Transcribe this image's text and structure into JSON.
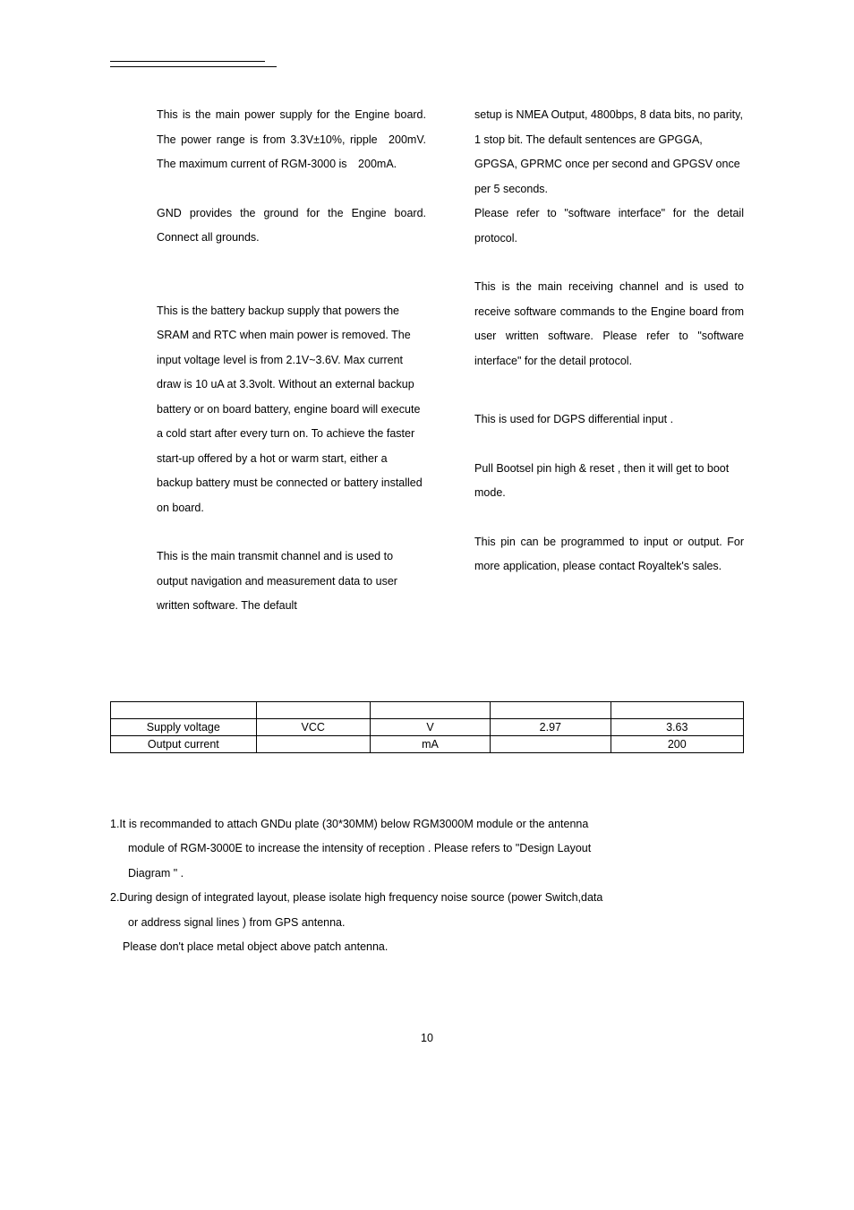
{
  "columns": {
    "left": {
      "p1": "This is the main power supply for the Engine board. The power range is from 3.3V±10%, ripple 200mV. The maximum current of RGM-3000 is 200mA.",
      "p2": "GND provides the ground for the Engine board. Connect all grounds.",
      "p3": "This is the battery backup supply that powers the SRAM and RTC when main power is removed. The input voltage level is from 2.1V~3.6V. Max current draw is 10 uA at 3.3volt. Without an external backup battery or on board battery, engine board will execute a cold start after every turn on. To achieve the faster start-up offered by a hot or warm start, either a backup battery must be connected or battery installed on board.",
      "p4": "This is the main transmit channel and is used to output navigation and measurement data to user written software. The default"
    },
    "right": {
      "p1": "setup is NMEA Output, 4800bps, 8 data bits, no parity, 1 stop bit. The default sentences are GPGGA, GPGSA, GPRMC once per second and GPGSV once per 5 seconds.",
      "p2": "Please refer to \"software interface\" for the detail protocol.",
      "p3": "This is the main receiving channel and is used to receive software commands to the Engine board from user written software. Please refer to \"software interface\" for the detail protocol.",
      "p4": "This is used for DGPS differential input .",
      "p5": "Pull Bootsel pin high & reset , then it will get to boot mode.",
      "p6": "This pin can be programmed to input or output. For more application, please contact Royaltek's sales."
    }
  },
  "table": {
    "rows": [
      {
        "param": "Supply voltage",
        "symbol": "VCC",
        "unit": "V",
        "min": "2.97",
        "max": "3.63"
      },
      {
        "param": "Output current",
        "symbol": "",
        "unit": "mA",
        "min": "",
        "max": "200"
      }
    ]
  },
  "notes": {
    "n1": "1.It is recommanded to attach GNDu plate (30*30MM) below RGM3000M module or the antenna",
    "n1b": "module of RGM-3000E to increase the intensity of reception . Please refers to \"Design Layout",
    "n1c": " Diagram \" .",
    "n2": "2.During design of integrated layout, please isolate high frequency noise source (power Switch,data",
    "n2b": "or address signal lines ) from GPS antenna.",
    "n3": "Please don't place metal object above patch antenna."
  },
  "page_number": "10"
}
